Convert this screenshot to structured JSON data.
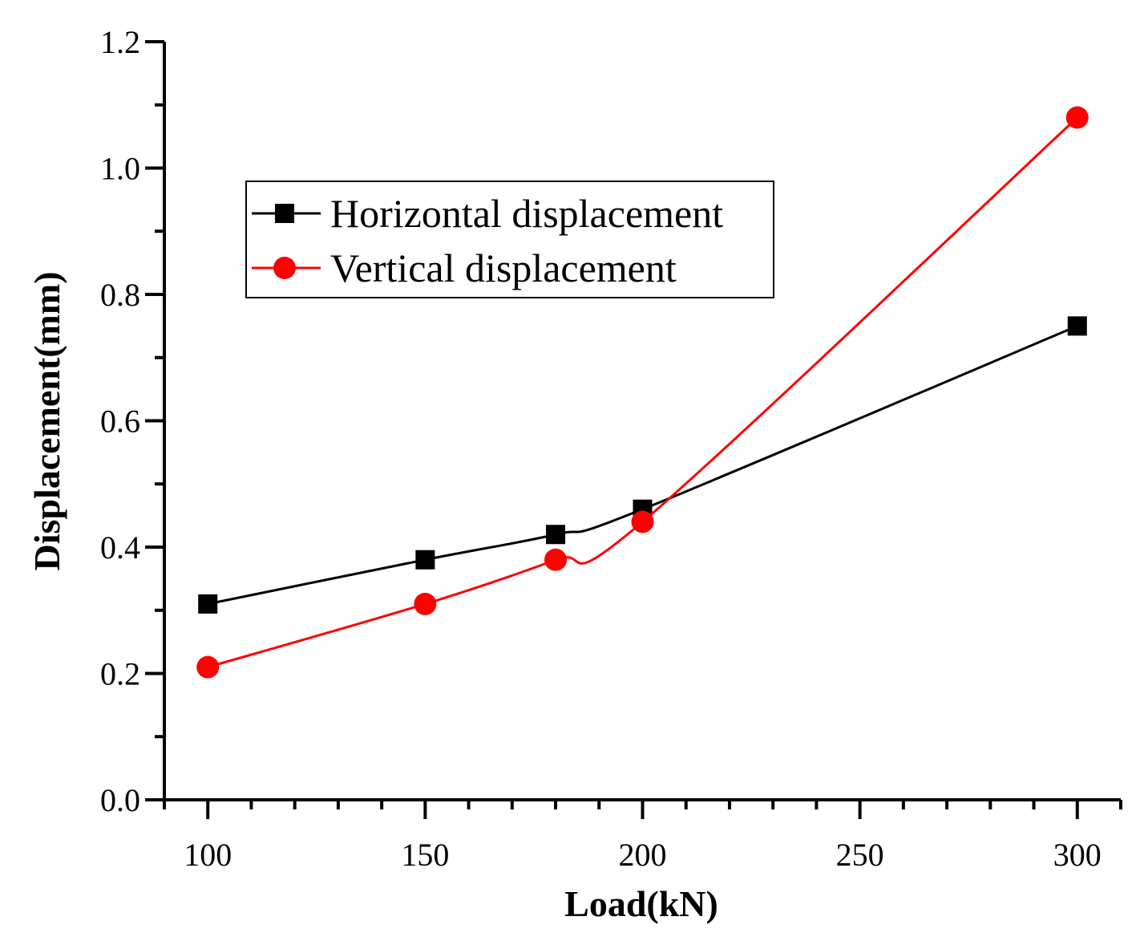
{
  "chart_data": {
    "type": "line",
    "title": "",
    "xlabel": "Load(kN)",
    "ylabel": "Displacement(mm)",
    "xlim": [
      90,
      310
    ],
    "ylim": [
      0,
      1.2
    ],
    "x_ticks": [
      100,
      150,
      200,
      250,
      300
    ],
    "x_tick_labels": [
      "100",
      "150",
      "200",
      "250",
      "300"
    ],
    "y_ticks": [
      0.0,
      0.2,
      0.4,
      0.6,
      0.8,
      1.0,
      1.2
    ],
    "y_tick_labels": [
      "0.0",
      "0.2",
      "0.4",
      "0.6",
      "0.8",
      "1.0",
      "1.2"
    ],
    "grid": false,
    "legend_position": "top-left",
    "series": [
      {
        "name": "Horizontal displacement",
        "color": "#000000",
        "marker": "square",
        "x": [
          100,
          150,
          180,
          200,
          300
        ],
        "values": [
          0.31,
          0.38,
          0.42,
          0.46,
          0.75
        ]
      },
      {
        "name": "Vertical displacement",
        "color": "#ff0000",
        "marker": "circle",
        "x": [
          100,
          150,
          180,
          200,
          300
        ],
        "values": [
          0.21,
          0.31,
          0.38,
          0.44,
          1.08
        ]
      }
    ]
  }
}
